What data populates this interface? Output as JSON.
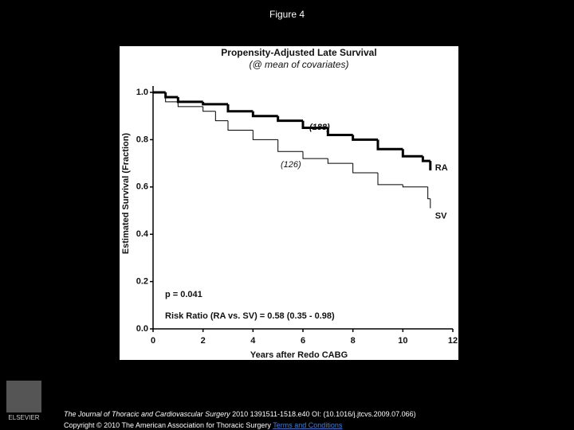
{
  "page": {
    "title": "Figure 4",
    "logo": "ELSEVIER",
    "journal": "The Journal of Thoracic and Cardiovascular Surgery",
    "citation": "2010 1391511-1518.e40 OI: (10.1016/j.jtcvs.2009.07.066)",
    "copyright": "Copyright © 2010 The American Association for Thoracic Surgery",
    "link": "Terms and Conditions"
  },
  "chart_data": {
    "type": "line",
    "step": true,
    "title": "Propensity-Adjusted Late Survival",
    "subtitle": "(@ mean of covariates)",
    "x_label": "Years after Redo CABG",
    "y_label": "Estimated Survival (Fraction)",
    "xlim": [
      0,
      12
    ],
    "xticks": [
      0,
      2,
      4,
      6,
      8,
      10,
      12
    ],
    "ylim": [
      0,
      1
    ],
    "yticks": [
      {
        "value": 0,
        "label": "0.0"
      },
      {
        "value": 0.2,
        "label": "0.2"
      },
      {
        "value": 0.4,
        "label": "0.4"
      },
      {
        "value": 0.6,
        "label": "0.6"
      },
      {
        "value": 0.8,
        "label": "0.8"
      },
      {
        "value": 1,
        "label": "1.0"
      }
    ],
    "series": [
      {
        "name": "RA",
        "color": "#000000",
        "line_width": 3,
        "x": [
          0,
          0.5,
          1,
          2,
          3,
          4,
          5,
          6,
          7,
          8,
          9,
          10,
          10.8,
          11.1
        ],
        "values": [
          1,
          0.98,
          0.96,
          0.95,
          0.92,
          0.9,
          0.88,
          0.85,
          0.82,
          0.8,
          0.76,
          0.73,
          0.71,
          0.67
        ]
      },
      {
        "name": "SV",
        "color": "#000000",
        "line_width": 1,
        "x": [
          0,
          0.5,
          1,
          2,
          2.5,
          3,
          4,
          5,
          6,
          7,
          8,
          9,
          10,
          11,
          11.1
        ],
        "values": [
          1,
          0.96,
          0.94,
          0.92,
          0.88,
          0.84,
          0.8,
          0.75,
          0.72,
          0.7,
          0.66,
          0.61,
          0.6,
          0.55,
          0.51
        ]
      }
    ],
    "annotations": [
      "(188)",
      "(126)",
      "p = 0.041",
      "Risk Ratio (RA vs. SV) = 0.58 (0.35 - 0.98)"
    ]
  }
}
